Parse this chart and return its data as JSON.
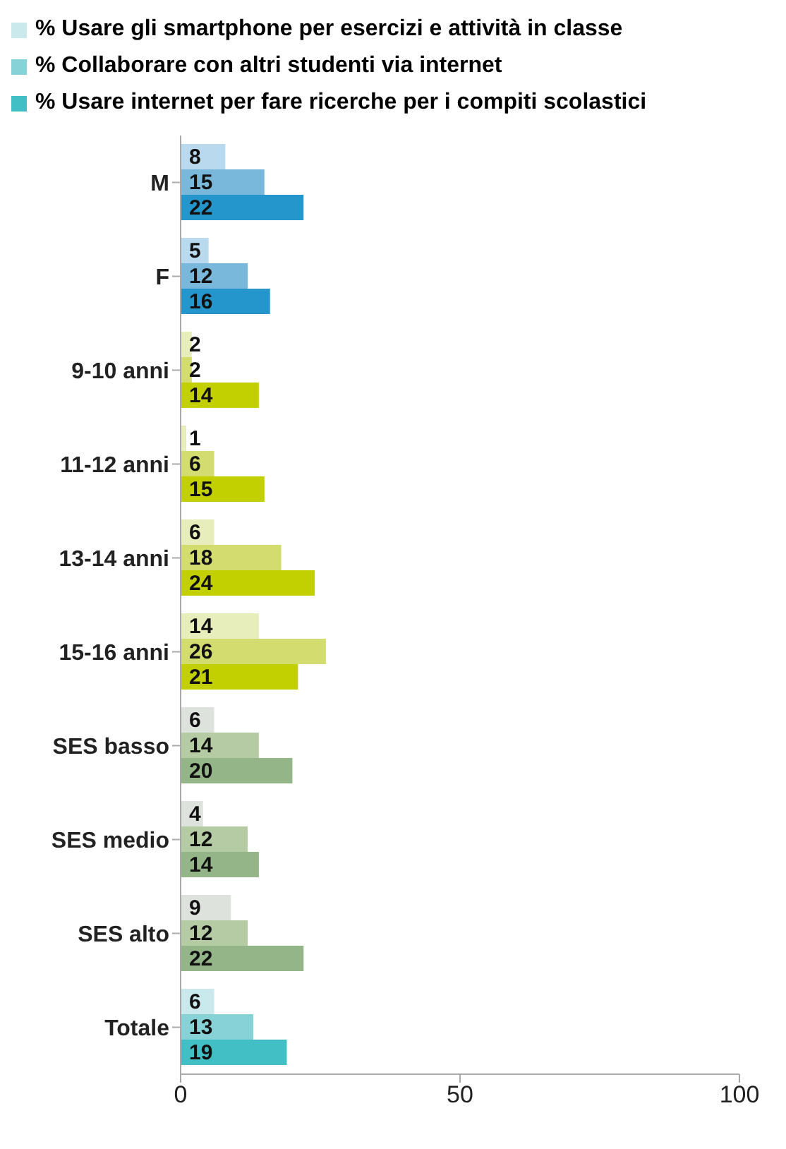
{
  "chart_data": {
    "type": "bar",
    "orientation": "horizontal",
    "categories": [
      "M",
      "F",
      "9-10 anni",
      "11-12 anni",
      "13-14 anni",
      "15-16 anni",
      "SES basso",
      "SES medio",
      "SES alto",
      "Totale"
    ],
    "series": [
      {
        "name": "% Usare gli smartphone per esercizi e attività in classe",
        "color": "#c9e9ec",
        "colors": [
          "#b9d9ee",
          "#b9d9ee",
          "#e7edbb",
          "#e7edbb",
          "#e7edbb",
          "#e7edbb",
          "#dde3dc",
          "#dde3dc",
          "#dde3dc",
          "#c9e9ec"
        ],
        "values": [
          8,
          5,
          2,
          1,
          6,
          14,
          6,
          4,
          9,
          6
        ]
      },
      {
        "name": "% Collaborare con altri studenti via internet",
        "color": "#86d2d6",
        "colors": [
          "#7ab8db",
          "#7ab8db",
          "#d3dc6e",
          "#d3dc6e",
          "#d3dc6e",
          "#d3dc6e",
          "#b5cba4",
          "#b5cba4",
          "#b5cba4",
          "#86d2d6"
        ],
        "values": [
          15,
          12,
          2,
          6,
          18,
          26,
          14,
          12,
          12,
          13
        ]
      },
      {
        "name": "% Usare internet per fare ricerche per i compiti scolastici",
        "color": "#41bfc4",
        "colors": [
          "#2596cc",
          "#2596cc",
          "#c2cf00",
          "#c2cf00",
          "#c2cf00",
          "#c2cf00",
          "#93b587",
          "#93b587",
          "#93b587",
          "#41bfc4"
        ],
        "values": [
          22,
          16,
          14,
          15,
          24,
          21,
          20,
          14,
          22,
          19
        ]
      }
    ],
    "xlim": [
      0,
      100
    ],
    "xticks": [
      0,
      50,
      100
    ],
    "data_labels": true,
    "legend": "top",
    "grid": false
  }
}
